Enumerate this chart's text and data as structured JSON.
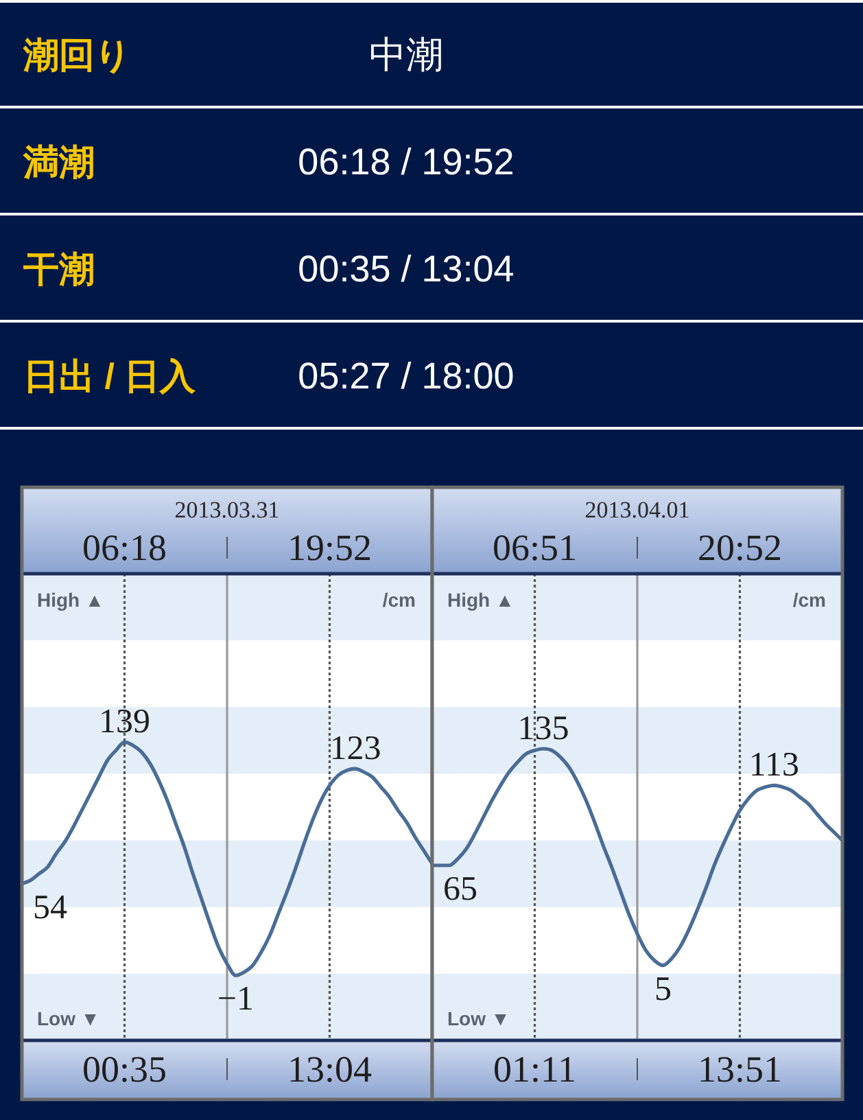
{
  "chart_data": [
    {
      "type": "other",
      "categories": [
        "潮回り",
        "満潮",
        "干潮",
        "日出 / 日入"
      ],
      "annotations": [
        "中潮",
        "06:18 / 19:52",
        "00:35 / 13:04",
        "05:27 / 18:00"
      ]
    },
    {
      "type": "line",
      "title": "2013.03.31",
      "annotations": [
        "06:18",
        "19:52",
        "00:35",
        "13:04",
        "High ▲",
        "Low ▼",
        "/cm"
      ],
      "categories": [
        null,
        null,
        null,
        null,
        null,
        null,
        null,
        null,
        null,
        null,
        null,
        null,
        null,
        null,
        null,
        null,
        null,
        null,
        null,
        null,
        null,
        null,
        null,
        null,
        null,
        null,
        null,
        null,
        null,
        null,
        null,
        null,
        null,
        null,
        null,
        null,
        null,
        null,
        null,
        null,
        null,
        null,
        null,
        null,
        null,
        null,
        null,
        null,
        null
      ],
      "values": [
        54,
        56,
        60,
        64,
        72,
        79,
        88,
        98,
        108,
        118,
        128,
        134,
        139,
        137,
        133,
        126,
        116,
        104,
        90,
        76,
        60,
        45,
        30,
        16,
        6,
        -1,
        1,
        5,
        13,
        23,
        36,
        49,
        63,
        78,
        92,
        104,
        113,
        119,
        122,
        123,
        121,
        118,
        112,
        106,
        98,
        91,
        82,
        74,
        66
      ],
      "value_labels": [
        "54",
        null,
        null,
        null,
        null,
        null,
        null,
        null,
        null,
        null,
        null,
        null,
        "139",
        null,
        null,
        null,
        null,
        null,
        null,
        null,
        null,
        null,
        null,
        null,
        null,
        "−1",
        null,
        null,
        null,
        null,
        null,
        null,
        null,
        null,
        null,
        null,
        null,
        null,
        null,
        "123",
        null,
        null,
        null,
        null,
        null,
        null,
        null,
        null,
        null
      ],
      "color": "#4a6c96",
      "ylim": [
        -40,
        240
      ],
      "tick_labels": false,
      "bands": [
        {
          "axis": "y",
          "from": -40,
          "to": 0,
          "color": "#e4eef8"
        },
        {
          "axis": "y",
          "from": 40,
          "to": 80,
          "color": "#e4eef8"
        },
        {
          "axis": "y",
          "from": 120,
          "to": 160,
          "color": "#e4eef8"
        },
        {
          "axis": "y",
          "from": 200,
          "to": 240,
          "color": "#e4eef8"
        }
      ]
    },
    {
      "type": "line",
      "title": "2013.04.01",
      "annotations": [
        "06:51",
        "20:52",
        "01:11",
        "13:51",
        "High ▲",
        "Low ▼",
        "/cm"
      ],
      "categories": [
        null,
        null,
        null,
        null,
        null,
        null,
        null,
        null,
        null,
        null,
        null,
        null,
        null,
        null,
        null,
        null,
        null,
        null,
        null,
        null,
        null,
        null,
        null,
        null,
        null,
        null,
        null,
        null,
        null,
        null,
        null,
        null,
        null,
        null,
        null,
        null,
        null,
        null,
        null,
        null,
        null,
        null,
        null,
        null,
        null,
        null,
        null,
        null,
        null
      ],
      "values": [
        65,
        65,
        65,
        69,
        75,
        84,
        94,
        104,
        113,
        121,
        127,
        132,
        134,
        135,
        134,
        130,
        124,
        115,
        104,
        91,
        77,
        64,
        50,
        36,
        24,
        14,
        8,
        5,
        9,
        16,
        26,
        38,
        51,
        65,
        77,
        88,
        98,
        105,
        110,
        112,
        113,
        112,
        110,
        106,
        102,
        96,
        90,
        85,
        80
      ],
      "value_labels": [
        "65",
        null,
        null,
        null,
        null,
        null,
        null,
        null,
        null,
        null,
        null,
        null,
        null,
        "135",
        null,
        null,
        null,
        null,
        null,
        null,
        null,
        null,
        null,
        null,
        null,
        null,
        null,
        "5",
        null,
        null,
        null,
        null,
        null,
        null,
        null,
        null,
        null,
        null,
        null,
        null,
        "113",
        null,
        null,
        null,
        null,
        null,
        null,
        null,
        null
      ],
      "color": "#4a6c96",
      "ylim": [
        -40,
        240
      ],
      "tick_labels": false,
      "bands": [
        {
          "axis": "y",
          "from": -40,
          "to": 0,
          "color": "#e4eef8"
        },
        {
          "axis": "y",
          "from": 40,
          "to": 80,
          "color": "#e4eef8"
        },
        {
          "axis": "y",
          "from": 120,
          "to": 160,
          "color": "#e4eef8"
        },
        {
          "axis": "y",
          "from": 200,
          "to": 240,
          "color": "#e4eef8"
        }
      ]
    }
  ]
}
